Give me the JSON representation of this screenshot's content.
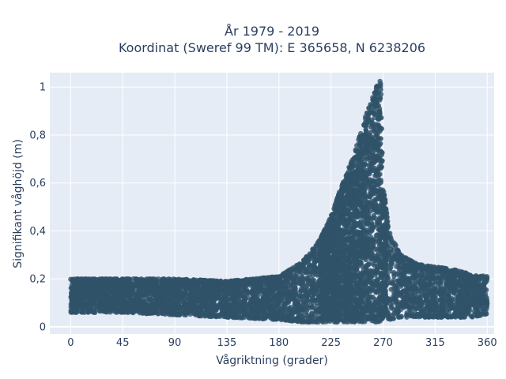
{
  "chart_data": {
    "type": "scatter",
    "title_line1": "År 1979 - 2019",
    "title_line2": "Koordinat (Sweref 99 TM): E 365658, N 6238206",
    "xlabel": "Vågriktning (grader)",
    "ylabel": "Signifikant våghöjd (m)",
    "xlim": [
      -18,
      366
    ],
    "ylim": [
      -0.03,
      1.06
    ],
    "x_ticks": [
      0,
      45,
      90,
      135,
      180,
      225,
      270,
      315,
      360
    ],
    "x_tick_labels": [
      "0",
      "45",
      "90",
      "135",
      "180",
      "225",
      "270",
      "315",
      "360"
    ],
    "y_ticks": [
      0,
      0.2,
      0.4,
      0.6,
      0.8,
      1
    ],
    "y_tick_labels": [
      "0",
      "0,2",
      "0,4",
      "0,6",
      "0,8",
      "1"
    ],
    "grid": true,
    "plot_background": "#e5ecf6",
    "marker_color": "#2f5269",
    "envelope": {
      "x": [
        0,
        45,
        90,
        135,
        180,
        200,
        215,
        225,
        235,
        245,
        250,
        255,
        260,
        265,
        268,
        270,
        275,
        285,
        300,
        315,
        330,
        345,
        360
      ],
      "y_low": [
        0.06,
        0.06,
        0.05,
        0.04,
        0.03,
        0.02,
        0.02,
        0.02,
        0.02,
        0.02,
        0.02,
        0.02,
        0.02,
        0.02,
        0.02,
        0.03,
        0.03,
        0.04,
        0.04,
        0.04,
        0.04,
        0.04,
        0.05
      ],
      "y_high": [
        0.2,
        0.2,
        0.2,
        0.19,
        0.21,
        0.27,
        0.36,
        0.46,
        0.6,
        0.72,
        0.8,
        0.88,
        0.95,
        1.01,
        1.03,
        0.6,
        0.4,
        0.3,
        0.26,
        0.25,
        0.24,
        0.22,
        0.21
      ]
    }
  }
}
